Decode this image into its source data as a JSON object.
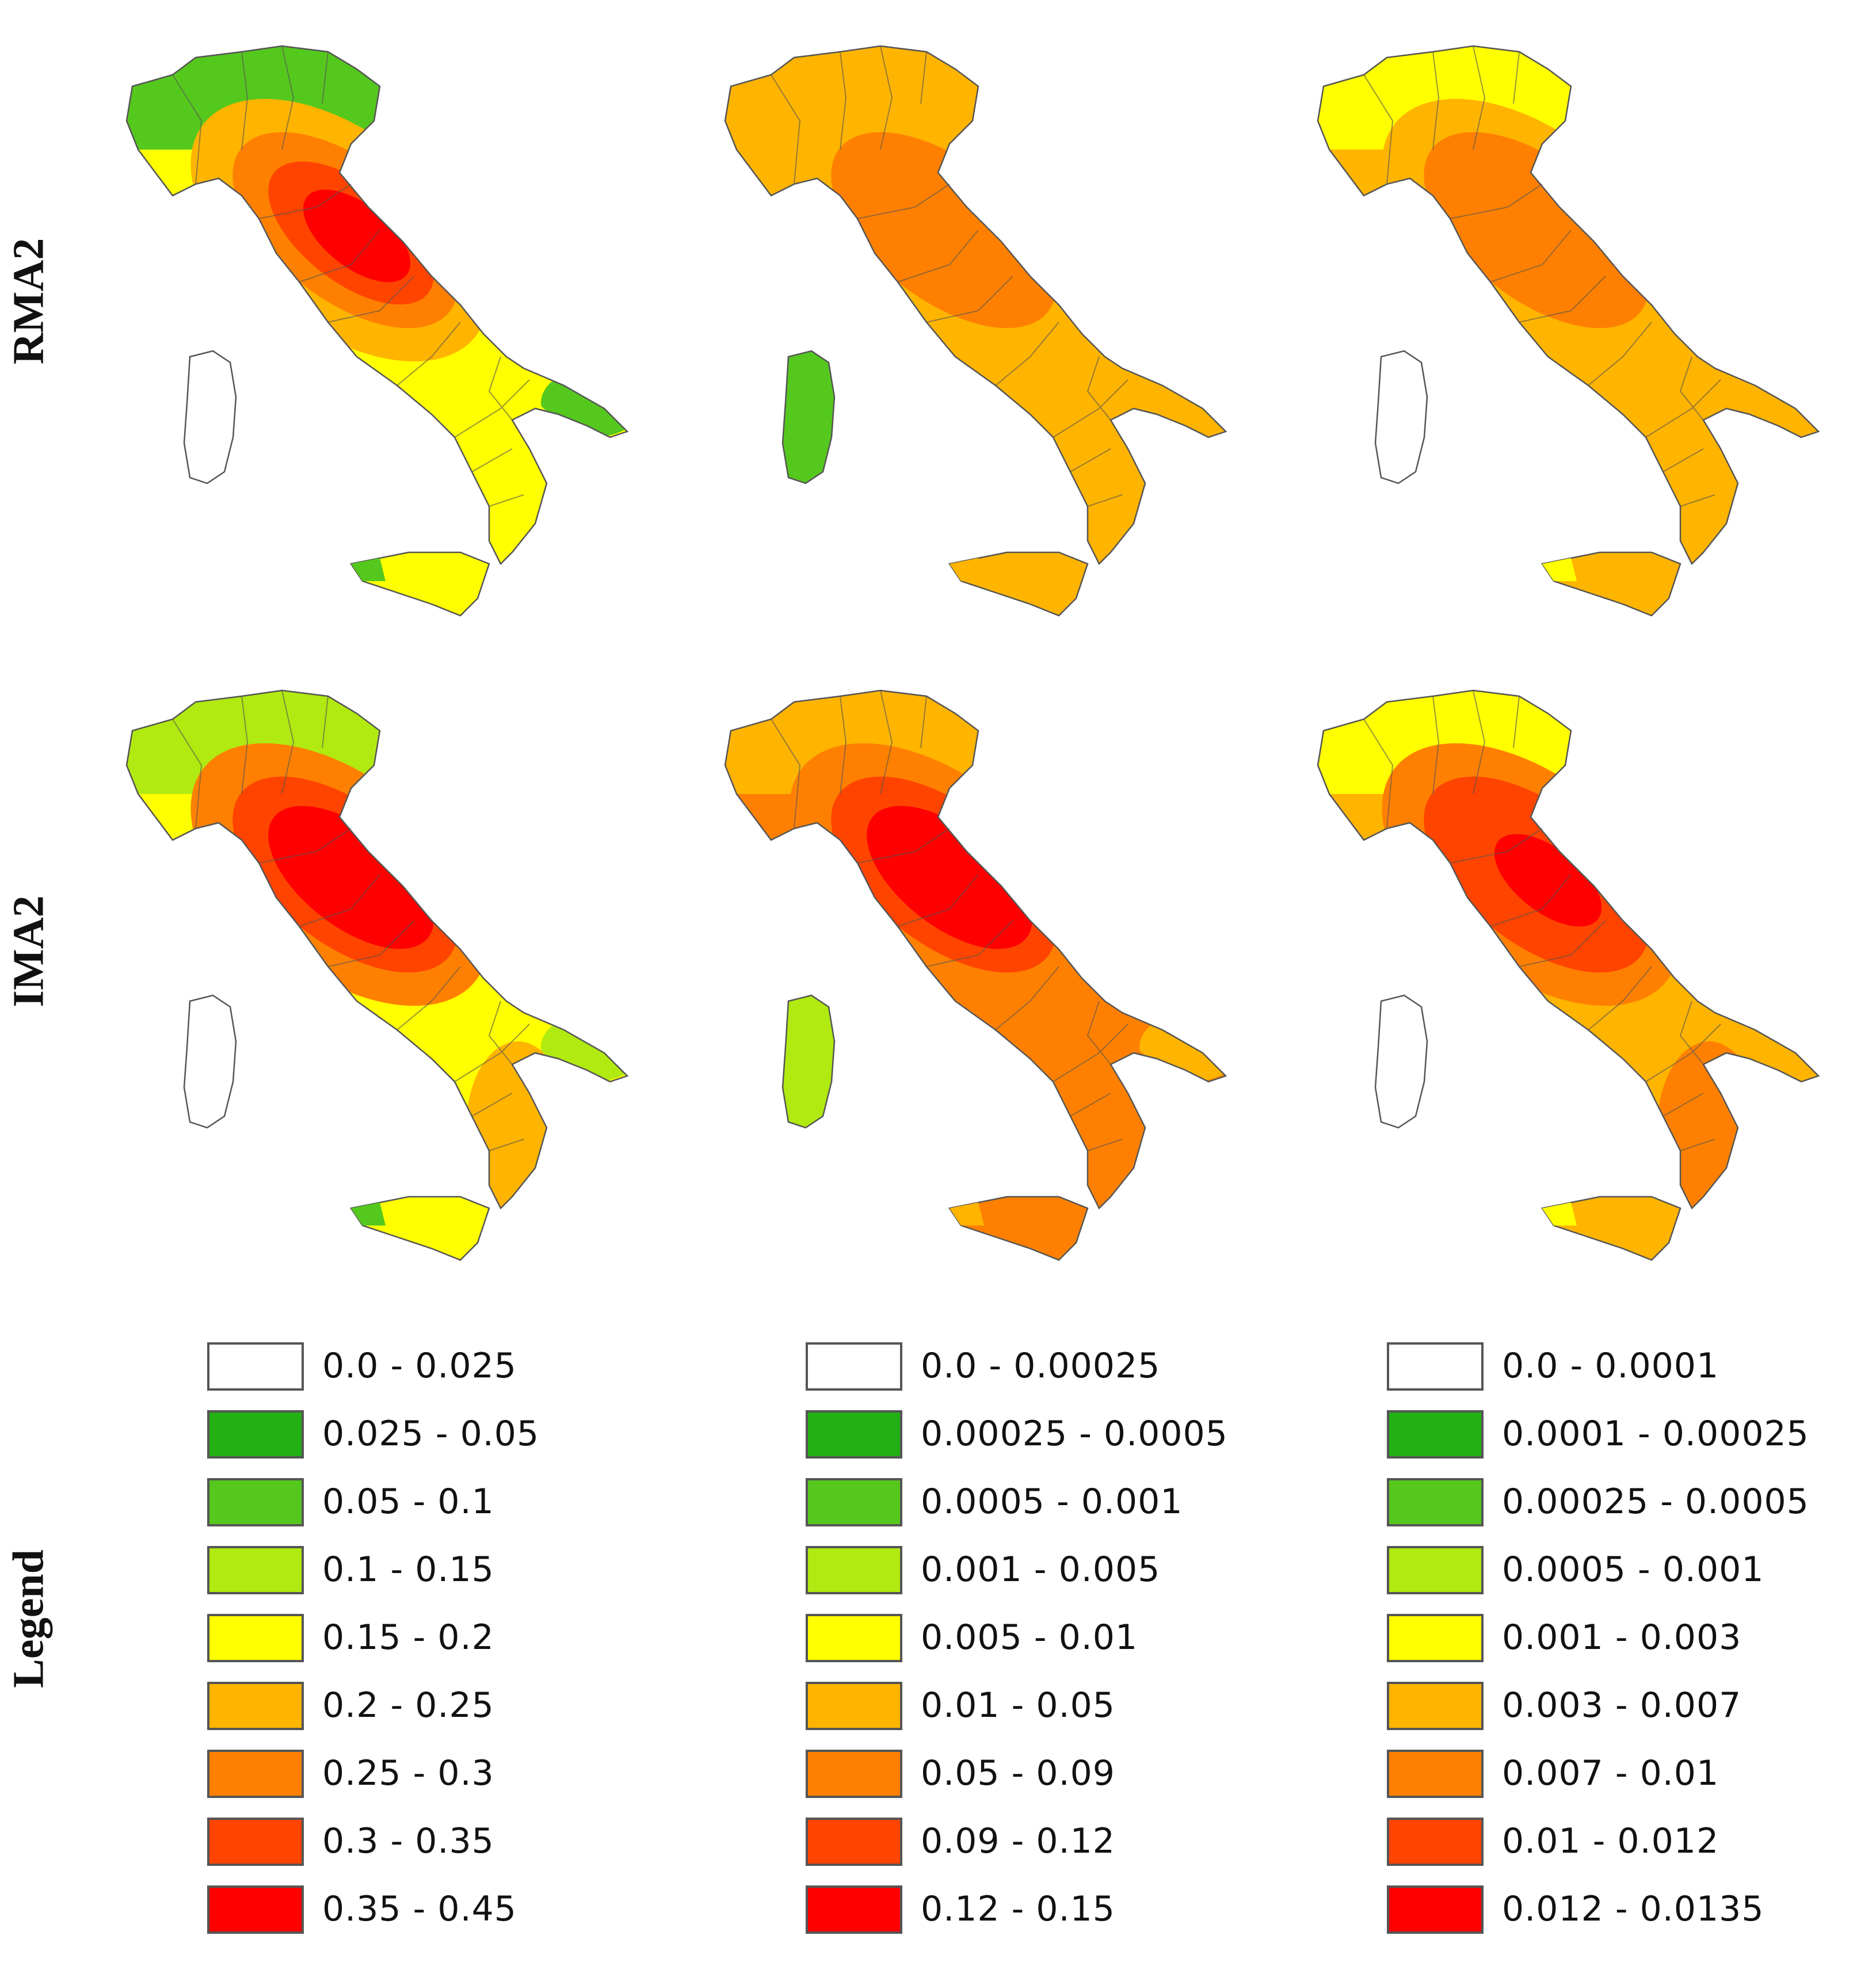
{
  "row_labels": [
    "RMA2",
    "IMA2",
    "Legend"
  ],
  "colors": {
    "c0": "#ffffff",
    "c1": "#22b014",
    "c2": "#55c81e",
    "c3": "#b0ea10",
    "c4": "#ffff00",
    "c5": "#ffb400",
    "c6": "#ff8000",
    "c7": "#ff4400",
    "c8": "#ff0000",
    "border": "#555555"
  },
  "maps": [
    {
      "row": "RMA2",
      "column": 1,
      "north": "c2",
      "peninsula_outer": "c4",
      "peninsula_mid": "c5",
      "center_ring": "c6",
      "center_inner": "c7",
      "center_core": "c8",
      "south": "c4",
      "heel": "c2",
      "sicily": "c4",
      "sicily_west": "c2",
      "sardinia": "c0"
    },
    {
      "row": "RMA2",
      "column": 2,
      "north": "c5",
      "peninsula_outer": "c5",
      "peninsula_mid": "c5",
      "center_ring": "c6",
      "center_inner": "c6",
      "center_core": "c6",
      "south": "c5",
      "heel": "c5",
      "sicily": "c5",
      "sicily_west": "c5",
      "sardinia": "c2"
    },
    {
      "row": "RMA2",
      "column": 3,
      "north": "c4",
      "peninsula_outer": "c5",
      "peninsula_mid": "c5",
      "center_ring": "c6",
      "center_inner": "c6",
      "center_core": "c6",
      "south": "c5",
      "heel": "c5",
      "sicily": "c5",
      "sicily_west": "c4",
      "sardinia": "c0"
    },
    {
      "row": "IMA2",
      "column": 1,
      "north": "c3",
      "peninsula_outer": "c4",
      "peninsula_mid": "c6",
      "center_ring": "c7",
      "center_inner": "c8",
      "center_core": "c8",
      "south": "c5",
      "heel": "c3",
      "sicily": "c4",
      "sicily_west": "c2",
      "sardinia": "c0"
    },
    {
      "row": "IMA2",
      "column": 2,
      "north": "c5",
      "peninsula_outer": "c6",
      "peninsula_mid": "c6",
      "center_ring": "c7",
      "center_inner": "c8",
      "center_core": "c8",
      "south": "c6",
      "heel": "c5",
      "sicily": "c6",
      "sicily_west": "c5",
      "sardinia": "c3"
    },
    {
      "row": "IMA2",
      "column": 3,
      "north": "c4",
      "peninsula_outer": "c5",
      "peninsula_mid": "c6",
      "center_ring": "c7",
      "center_inner": "c7",
      "center_core": "c8",
      "south": "c6",
      "heel": "c5",
      "sicily": "c5",
      "sicily_west": "c4",
      "sardinia": "c0"
    }
  ],
  "legends": [
    {
      "column": 1,
      "items": [
        {
          "label": "0.0 - 0.025",
          "color": "#ffffff"
        },
        {
          "label": "0.025 - 0.05",
          "color": "#22b014"
        },
        {
          "label": "0.05 - 0.1",
          "color": "#55c81e"
        },
        {
          "label": "0.1 - 0.15",
          "color": "#b0ea10"
        },
        {
          "label": "0.15 - 0.2",
          "color": "#ffff00"
        },
        {
          "label": "0.2 - 0.25",
          "color": "#ffb400"
        },
        {
          "label": "0.25 - 0.3",
          "color": "#ff8000"
        },
        {
          "label": "0.3 - 0.35",
          "color": "#ff4400"
        },
        {
          "label": "0.35 - 0.45",
          "color": "#ff0000"
        }
      ]
    },
    {
      "column": 2,
      "items": [
        {
          "label": "0.0 - 0.00025",
          "color": "#ffffff"
        },
        {
          "label": "0.00025 - 0.0005",
          "color": "#22b014"
        },
        {
          "label": "0.0005 - 0.001",
          "color": "#55c81e"
        },
        {
          "label": "0.001 - 0.005",
          "color": "#b0ea10"
        },
        {
          "label": "0.005 - 0.01",
          "color": "#ffff00"
        },
        {
          "label": "0.01 - 0.05",
          "color": "#ffb400"
        },
        {
          "label": "0.05 - 0.09",
          "color": "#ff8000"
        },
        {
          "label": "0.09 - 0.12",
          "color": "#ff4400"
        },
        {
          "label": "0.12 - 0.15",
          "color": "#ff0000"
        }
      ]
    },
    {
      "column": 3,
      "items": [
        {
          "label": "0.0 - 0.0001",
          "color": "#ffffff"
        },
        {
          "label": "0.0001 - 0.00025",
          "color": "#22b014"
        },
        {
          "label": "0.00025 - 0.0005",
          "color": "#55c81e"
        },
        {
          "label": "0.0005 - 0.001",
          "color": "#b0ea10"
        },
        {
          "label": "0.001 - 0.003",
          "color": "#ffff00"
        },
        {
          "label": "0.003 - 0.007",
          "color": "#ffb400"
        },
        {
          "label": "0.007 - 0.01",
          "color": "#ff8000"
        },
        {
          "label": "0.01 - 0.012",
          "color": "#ff4400"
        },
        {
          "label": "0.012 - 0.0135",
          "color": "#ff0000"
        }
      ]
    }
  ]
}
